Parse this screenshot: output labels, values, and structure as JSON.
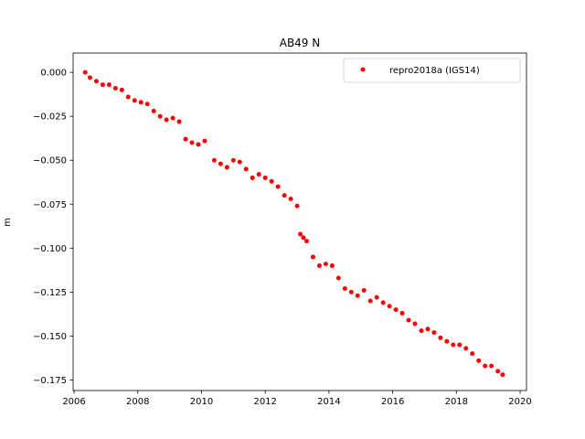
{
  "chart_data": {
    "type": "scatter",
    "title": "AB49 N",
    "xlabel": "",
    "ylabel": "m",
    "xlim": [
      2005.97,
      2020.2
    ],
    "ylim": [
      -0.181,
      0.011
    ],
    "x_ticks": [
      2006,
      2008,
      2010,
      2012,
      2014,
      2016,
      2018,
      2020
    ],
    "x_tick_labels": [
      "2006",
      "2008",
      "2010",
      "2012",
      "2014",
      "2016",
      "2018",
      "2020"
    ],
    "y_ticks": [
      0.0,
      -0.025,
      -0.05,
      -0.075,
      -0.1,
      -0.125,
      -0.15,
      -0.175
    ],
    "y_tick_labels": [
      "0.000",
      "−0.025",
      "−0.050",
      "−0.075",
      "−0.100",
      "−0.125",
      "−0.150",
      "−0.175"
    ],
    "grid": false,
    "legend_position": "top-right",
    "series": [
      {
        "name": "repro2018a (IGS14)",
        "color": "#ff0000",
        "marker": "circle",
        "x": [
          2006.35,
          2006.5,
          2006.7,
          2006.9,
          2007.1,
          2007.3,
          2007.5,
          2007.7,
          2007.9,
          2008.1,
          2008.3,
          2008.5,
          2008.7,
          2008.9,
          2009.1,
          2009.3,
          2009.5,
          2009.7,
          2009.9,
          2010.1,
          2010.4,
          2010.6,
          2010.8,
          2011.0,
          2011.2,
          2011.4,
          2011.6,
          2011.8,
          2012.0,
          2012.2,
          2012.4,
          2012.6,
          2012.8,
          2013.0,
          2013.1,
          2013.2,
          2013.3,
          2013.5,
          2013.7,
          2013.9,
          2014.1,
          2014.3,
          2014.5,
          2014.7,
          2014.9,
          2015.1,
          2015.3,
          2015.5,
          2015.7,
          2015.9,
          2016.1,
          2016.3,
          2016.5,
          2016.7,
          2016.9,
          2017.1,
          2017.3,
          2017.5,
          2017.7,
          2017.9,
          2018.1,
          2018.3,
          2018.5,
          2018.7,
          2018.9,
          2019.1,
          2019.3,
          2019.45
        ],
        "y": [
          0.0,
          -0.003,
          -0.005,
          -0.007,
          -0.007,
          -0.009,
          -0.01,
          -0.014,
          -0.016,
          -0.017,
          -0.018,
          -0.022,
          -0.025,
          -0.027,
          -0.026,
          -0.028,
          -0.038,
          -0.04,
          -0.041,
          -0.039,
          -0.05,
          -0.052,
          -0.054,
          -0.05,
          -0.051,
          -0.055,
          -0.06,
          -0.058,
          -0.06,
          -0.062,
          -0.065,
          -0.07,
          -0.072,
          -0.076,
          -0.092,
          -0.094,
          -0.096,
          -0.105,
          -0.11,
          -0.109,
          -0.11,
          -0.117,
          -0.123,
          -0.125,
          -0.127,
          -0.124,
          -0.13,
          -0.128,
          -0.131,
          -0.133,
          -0.135,
          -0.137,
          -0.141,
          -0.143,
          -0.147,
          -0.146,
          -0.148,
          -0.151,
          -0.153,
          -0.155,
          -0.155,
          -0.157,
          -0.16,
          -0.164,
          -0.167,
          -0.167,
          -0.17,
          -0.172
        ]
      }
    ]
  }
}
